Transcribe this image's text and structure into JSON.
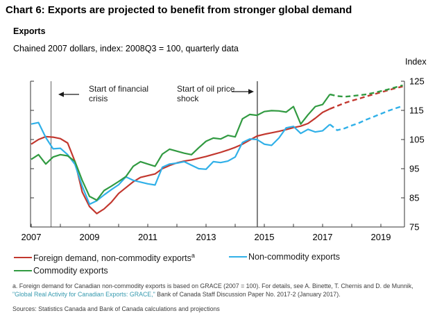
{
  "page_title": "Chart 6: Exports are projected to benefit from stronger global demand",
  "chart_data": {
    "type": "line",
    "title": "Exports",
    "subtitle": "Chained 2007 dollars, index: 2008Q3 = 100, quarterly data",
    "xlabel": "",
    "ylabel": "Index",
    "grid": false,
    "legend_position": "bottom",
    "ylim": [
      75,
      125
    ],
    "y_ticks": [
      75,
      85,
      95,
      105,
      115,
      125
    ],
    "x_ticks": [
      2007,
      2008,
      2009,
      2010,
      2011,
      2012,
      2013,
      2014,
      2015,
      2016,
      2017,
      2018,
      2019
    ],
    "x_tick_labels": [
      "2007",
      "2009",
      "2011",
      "2013",
      "2015",
      "2017",
      "2019"
    ],
    "x_start": 2007.0,
    "x_step": 0.25,
    "n_points": 52,
    "projection_split_index": 41,
    "projection_style": "dashed",
    "series": [
      {
        "name": "Foreign demand, non-commodity exports",
        "footnote_marker": "a",
        "color": "#c2372e",
        "values": [
          103.4,
          105.0,
          106.0,
          105.8,
          105.3,
          103.8,
          97.5,
          87.0,
          82.0,
          79.6,
          81.2,
          83.5,
          86.5,
          88.5,
          90.5,
          92.0,
          92.6,
          93.2,
          95.0,
          96.1,
          97.0,
          97.6,
          98.0,
          98.6,
          99.2,
          99.9,
          100.6,
          101.4,
          102.3,
          103.4,
          104.8,
          106.2,
          106.8,
          107.3,
          107.8,
          108.4,
          109.1,
          109.6,
          110.5,
          112.3,
          114.3,
          115.5,
          116.5,
          117.5,
          118.3,
          119.0,
          119.8,
          120.5,
          121.2,
          121.9,
          122.6,
          123.2
        ]
      },
      {
        "name": "Non-commodity exports",
        "footnote_marker": "",
        "color": "#30b0e8",
        "values": [
          110.3,
          110.8,
          105.7,
          101.8,
          102.0,
          99.8,
          96.5,
          89.0,
          82.8,
          84.0,
          86.0,
          87.8,
          89.5,
          92.2,
          91.0,
          90.4,
          89.8,
          89.4,
          95.5,
          96.6,
          96.9,
          97.4,
          96.2,
          95.0,
          94.8,
          97.4,
          97.1,
          97.6,
          99.0,
          104.0,
          105.2,
          105.0,
          103.4,
          103.0,
          105.5,
          109.0,
          109.5,
          107.1,
          108.5,
          107.6,
          108.0,
          110.2,
          108.2,
          108.8,
          109.8,
          110.7,
          111.8,
          112.8,
          113.8,
          114.8,
          115.7,
          116.5
        ]
      },
      {
        "name": "Commodity exports",
        "footnote_marker": "",
        "color": "#319a41",
        "values": [
          98.2,
          99.8,
          96.6,
          99.0,
          99.8,
          99.4,
          97.5,
          91.0,
          85.5,
          84.2,
          87.5,
          89.0,
          90.6,
          92.3,
          95.8,
          97.4,
          96.6,
          95.8,
          100.0,
          101.7,
          101.0,
          100.3,
          99.8,
          102.2,
          104.4,
          105.5,
          105.2,
          106.4,
          105.9,
          112.1,
          113.6,
          113.3,
          114.6,
          114.9,
          114.8,
          114.4,
          116.3,
          110.3,
          113.5,
          116.3,
          117.0,
          120.5,
          119.9,
          119.7,
          119.9,
          120.2,
          120.5,
          121.0,
          121.6,
          122.2,
          122.9,
          123.6
        ]
      }
    ],
    "events": [
      {
        "label": "Start of financial crisis",
        "label_lines": [
          "Start of financial",
          "crisis"
        ],
        "x": 2007.68,
        "arrow": "left",
        "line_color": "#707070"
      },
      {
        "label": "Start of oil price shock",
        "label_lines": [
          "Start of oil price",
          "shock"
        ],
        "x": 2014.76,
        "arrow": "right",
        "line_color": "#1a1a1a"
      }
    ]
  },
  "footnote": {
    "line1": "a. Foreign demand for Canadian non-commodity exports is based on GRACE (2007 = 100). For details, see A. Binette, T. Chernis and D. de Munnik,",
    "link": "\"Global Real Activity for Canadian Exports: GRACE,\"",
    "after_link": " Bank of Canada Staff Discussion Paper No. 2017-2 (January 2017)."
  },
  "sources": "Sources: Statistics Canada and Bank of Canada calculations and projections"
}
